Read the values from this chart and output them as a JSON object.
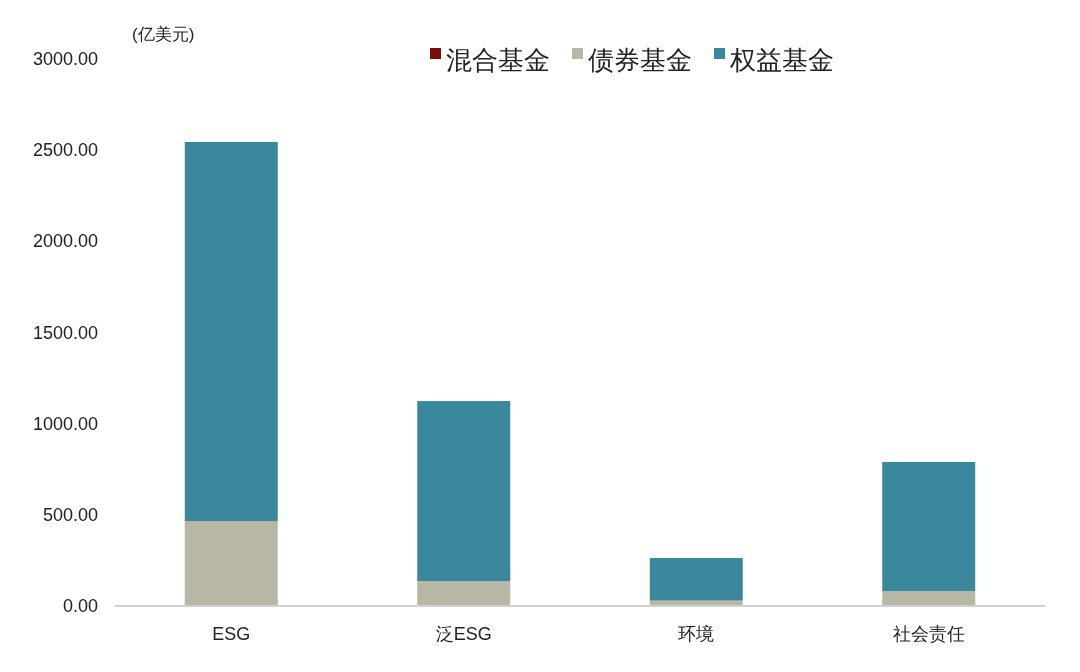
{
  "chart_data": {
    "type": "bar",
    "stacked": true,
    "ylabel": "(亿美元)",
    "legend": "top",
    "grid": false,
    "categories": [
      "ESG",
      "泛ESG",
      "环境",
      "社会责任"
    ],
    "series": [
      {
        "name": "混合基金",
        "color": "#7b0c0c",
        "values": [
          0,
          0,
          0,
          0
        ]
      },
      {
        "name": "债券基金",
        "color": "#b8b7a6",
        "values": [
          466,
          137,
          30,
          82
        ]
      },
      {
        "name": "权益基金",
        "color": "#3b879b",
        "values": [
          2079,
          987,
          233,
          708
        ]
      }
    ],
    "ylim": [
      0,
      3000
    ],
    "yticks": [
      {
        "value": 0,
        "label": "0.00"
      },
      {
        "value": 500,
        "label": "500.00"
      },
      {
        "value": 1000,
        "label": "1000.00"
      },
      {
        "value": 1500,
        "label": "1500.00"
      },
      {
        "value": 2000,
        "label": "2000.00"
      },
      {
        "value": 2500,
        "label": "2500.00"
      },
      {
        "value": 3000,
        "label": "3000.00"
      }
    ]
  }
}
